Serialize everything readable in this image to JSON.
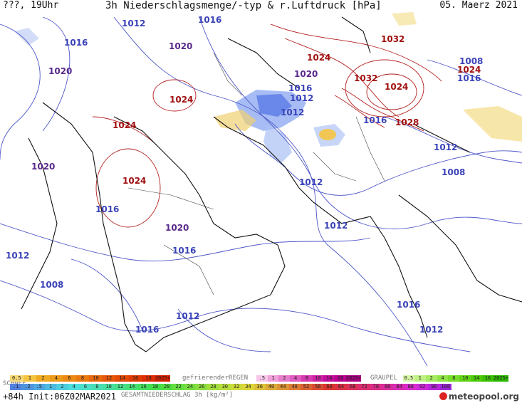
{
  "header": {
    "valid_time": "???, 19Uhr",
    "title": "3h Niederschlagsmenge/-typ & r.Luftdruck [hPa]",
    "date": "05. Maerz 2021"
  },
  "isobar_labels": [
    {
      "text": "1012",
      "color": "blue"
    },
    {
      "text": "1016",
      "color": "blue"
    },
    {
      "text": "1016",
      "color": "blue"
    },
    {
      "text": "1020",
      "color": "vio"
    },
    {
      "text": "1020",
      "color": "vio"
    },
    {
      "text": "1024",
      "color": "red"
    },
    {
      "text": "1024",
      "color": "red"
    },
    {
      "text": "1032",
      "color": "red"
    },
    {
      "text": "1024",
      "color": "red"
    },
    {
      "text": "1020",
      "color": "vio"
    },
    {
      "text": "1016",
      "color": "blue"
    },
    {
      "text": "1012",
      "color": "blue"
    },
    {
      "text": "1024",
      "color": "red"
    },
    {
      "text": "1016",
      "color": "blue"
    },
    {
      "text": "1012",
      "color": "blue"
    },
    {
      "text": "1008",
      "color": "blue"
    },
    {
      "text": "1032",
      "color": "red"
    },
    {
      "text": "1024",
      "color": "red"
    },
    {
      "text": "1016",
      "color": "blue"
    },
    {
      "text": "1028",
      "color": "red"
    },
    {
      "text": "1012",
      "color": "blue"
    },
    {
      "text": "1008",
      "color": "blue"
    },
    {
      "text": "1020",
      "color": "vio"
    },
    {
      "text": "1024",
      "color": "red"
    },
    {
      "text": "1012",
      "color": "blue"
    },
    {
      "text": "1016",
      "color": "blue"
    },
    {
      "text": "1020",
      "color": "vio"
    },
    {
      "text": "1012",
      "color": "blue"
    },
    {
      "text": "1016",
      "color": "blue"
    },
    {
      "text": "1012",
      "color": "blue"
    },
    {
      "text": "1008",
      "color": "blue"
    },
    {
      "text": "1012",
      "color": "blue"
    },
    {
      "text": "1016",
      "color": "blue"
    },
    {
      "text": "1016",
      "color": "blue"
    },
    {
      "text": "1012",
      "color": "blue"
    }
  ],
  "legend": {
    "snow_label": "SCHNEE",
    "snow_values": [
      "0.5",
      "1",
      "2",
      "4",
      "6",
      "8",
      "10",
      "12",
      "14",
      "16",
      "18",
      "2025+"
    ],
    "snow_colors": [
      "#f7d774",
      "#f5c441",
      "#f0aa22",
      "#ee9a1a",
      "#ec8a14",
      "#e9790f",
      "#e8680b",
      "#e55808",
      "#e34805",
      "#e03a03",
      "#de2c01",
      "#d82000"
    ],
    "freezing_rain_label": "gefrierenderREGEN",
    "freezing_values": [
      ".5",
      "1",
      "2",
      "4",
      "8",
      "10",
      "14",
      "16",
      "2025+"
    ],
    "freezing_colors": [
      "#f7c6e8",
      "#f0a0da",
      "#e87ccc",
      "#e05abf",
      "#d83ab2",
      "#cf22a6",
      "#c40c9a",
      "#b8008e",
      "#aa0080"
    ],
    "graupel_label": "GRAUPEL",
    "graupel_values": [
      "0.5",
      "1",
      "2",
      "4",
      "8",
      "10",
      "14",
      "16",
      "2025+"
    ],
    "graupel_colors": [
      "#d6f5a8",
      "#bff084",
      "#a6ea62",
      "#8ee444",
      "#77dc2a",
      "#62d416",
      "#4ecc0a",
      "#3cc203",
      "#2cb800"
    ],
    "total_label": "GESAMTNIEDERSCHLAG 3h [kg/m²]",
    "total_values": [
      ".1",
      ".2",
      ".5",
      "1",
      "2",
      "4",
      "6",
      "8",
      "10",
      "12",
      "14",
      "16",
      "18",
      "20",
      "22",
      "24",
      "26",
      "28",
      "30",
      "32",
      "34",
      "36",
      "40",
      "44",
      "48",
      "52",
      "56",
      "60",
      "64",
      "68",
      "72",
      "76",
      "80",
      "84",
      "88",
      "92",
      "96",
      "100"
    ],
    "run_info": "+84h Init:06Z02MAR2021",
    "brand": "meteopool.org"
  }
}
